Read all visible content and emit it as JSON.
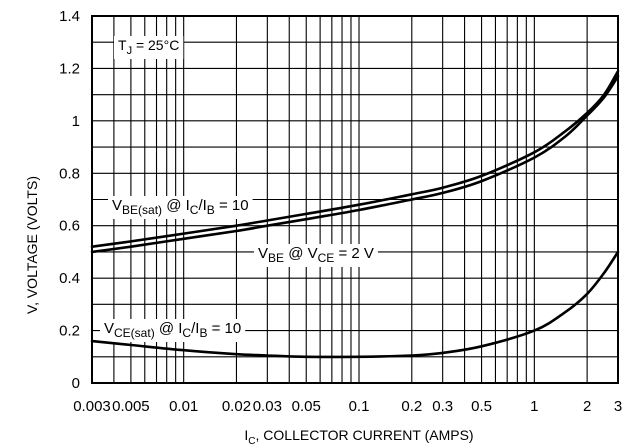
{
  "chart_data": {
    "type": "line",
    "title": "",
    "xlabel": "",
    "ylabel": "V, VOLTAGE (VOLTS)",
    "x_scale": "log",
    "xlim": [
      0.003,
      3
    ],
    "ylim": [
      0,
      1.4
    ],
    "grid": true,
    "x_tick_labels": [
      "0.003",
      "0.005",
      "0.01",
      "0.02",
      "0.03",
      "0.05",
      "0.1",
      "0.2",
      "0.3",
      "0.5",
      "1",
      "2",
      "3"
    ],
    "y_tick_labels": [
      "0",
      "0.2",
      "0.4",
      "0.6",
      "0.8",
      "1",
      "1.2",
      "1.4"
    ],
    "x_axis_title": {
      "main": "I",
      "sub": "C",
      "rest": ", COLLECTOR CURRENT (AMPS)"
    },
    "annotations": [
      {
        "id": "tj",
        "parts": [
          {
            "t": "T"
          },
          {
            "t": "J",
            "sub": true
          },
          {
            "t": " = 25°C"
          }
        ]
      },
      {
        "id": "vbesat",
        "parts": [
          {
            "t": "V"
          },
          {
            "t": "BE(sat)",
            "sub": true
          },
          {
            "t": " @ I"
          },
          {
            "t": "C",
            "sub": true
          },
          {
            "t": "/I"
          },
          {
            "t": "B",
            "sub": true
          },
          {
            "t": " = 10"
          }
        ]
      },
      {
        "id": "vbe",
        "parts": [
          {
            "t": "V"
          },
          {
            "t": "BE",
            "sub": true
          },
          {
            "t": " @ V"
          },
          {
            "t": "CE",
            "sub": true
          },
          {
            "t": " = 2 V"
          }
        ]
      },
      {
        "id": "vcesat",
        "parts": [
          {
            "t": "V"
          },
          {
            "t": "CE(sat)",
            "sub": true
          },
          {
            "t": " @ I"
          },
          {
            "t": "C",
            "sub": true
          },
          {
            "t": "/I"
          },
          {
            "t": "B",
            "sub": true
          },
          {
            "t": " = 10"
          }
        ]
      }
    ],
    "series": [
      {
        "key": "vbe_sat",
        "x": [
          0.003,
          0.005,
          0.01,
          0.02,
          0.03,
          0.05,
          0.1,
          0.2,
          0.3,
          0.5,
          1,
          1.5,
          2,
          2.5,
          3
        ],
        "y": [
          0.52,
          0.54,
          0.57,
          0.6,
          0.62,
          0.645,
          0.68,
          0.72,
          0.745,
          0.79,
          0.88,
          0.96,
          1.03,
          1.1,
          1.19
        ]
      },
      {
        "key": "vbe",
        "x": [
          0.003,
          0.005,
          0.01,
          0.02,
          0.03,
          0.05,
          0.1,
          0.2,
          0.3,
          0.5,
          1,
          1.5,
          2,
          2.5,
          3
        ],
        "y": [
          0.5,
          0.52,
          0.55,
          0.58,
          0.6,
          0.625,
          0.66,
          0.7,
          0.725,
          0.77,
          0.86,
          0.94,
          1.02,
          1.09,
          1.17
        ]
      },
      {
        "key": "vce_sat",
        "x": [
          0.003,
          0.005,
          0.01,
          0.02,
          0.03,
          0.05,
          0.1,
          0.2,
          0.3,
          0.5,
          1,
          1.5,
          2,
          2.5,
          3
        ],
        "y": [
          0.16,
          0.145,
          0.125,
          0.11,
          0.105,
          0.1,
          0.1,
          0.105,
          0.115,
          0.14,
          0.2,
          0.27,
          0.34,
          0.42,
          0.5
        ]
      }
    ]
  }
}
